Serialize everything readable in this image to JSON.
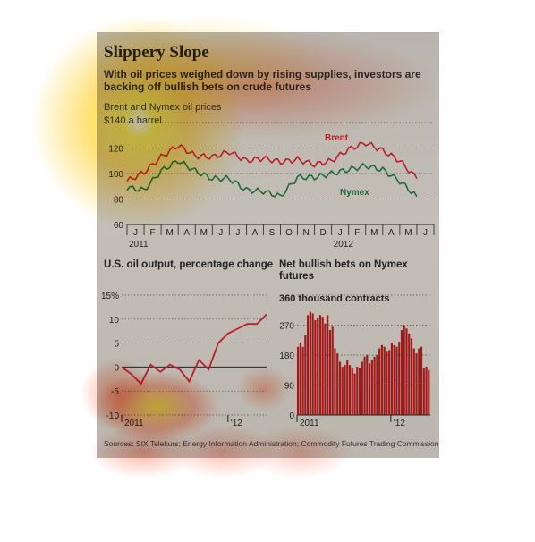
{
  "header": {
    "title": "Slippery Slope",
    "subtitle": "With oil prices weighed down by rising supplies, investors are backing off bullish bets on crude futures"
  },
  "chart_data": [
    {
      "type": "line",
      "title": "Brent and Nymex oil prices",
      "unit_label": "$140 a barrel",
      "ylim": [
        60,
        140
      ],
      "yticks": [
        60,
        80,
        100,
        120,
        140
      ],
      "months": [
        "J",
        "F",
        "M",
        "A",
        "M",
        "J",
        "J",
        "A",
        "S",
        "O",
        "N",
        "D",
        "J",
        "F",
        "M",
        "A",
        "M",
        "J"
      ],
      "year_labels": [
        "2011",
        "2012"
      ],
      "series": [
        {
          "name": "Brent",
          "color": "#b8202a",
          "values": [
            94,
            101,
            113,
            122,
            114,
            113,
            117,
            110,
            112,
            109,
            111,
            107,
            110,
            119,
            124,
            118,
            110,
            96
          ]
        },
        {
          "name": "Nymex",
          "color": "#1e6b3c",
          "values": [
            89,
            87,
            102,
            110,
            102,
            96,
            96,
            87,
            86,
            82,
            97,
            97,
            100,
            103,
            106,
            103,
            94,
            82
          ]
        }
      ]
    },
    {
      "type": "line",
      "title": "U.S. oil output, percentage change",
      "ylim": [
        -10,
        15
      ],
      "yticks": [
        "15%",
        "10",
        "5",
        "0",
        "-5",
        "-10"
      ],
      "x_labels": [
        "2011",
        "'12"
      ],
      "series": [
        {
          "name": "",
          "color": "#b8202a",
          "values": [
            0,
            -1.5,
            -3.5,
            0.5,
            -1,
            0.5,
            -0.5,
            -3,
            1.5,
            -0.5,
            5,
            7,
            8,
            9,
            9,
            11
          ]
        }
      ]
    },
    {
      "type": "bar",
      "title": "Net bullish bets on Nymex futures",
      "unit_label": "360 thousand contracts",
      "ylim": [
        0,
        360
      ],
      "yticks": [
        "270",
        "180",
        "90",
        "0"
      ],
      "x_labels": [
        "2011",
        "'12"
      ],
      "color": "#a01818",
      "values": [
        205,
        215,
        205,
        240,
        300,
        310,
        305,
        285,
        290,
        300,
        295,
        275,
        300,
        255,
        265,
        200,
        185,
        160,
        145,
        150,
        165,
        150,
        140,
        125,
        145,
        140,
        160,
        175,
        180,
        155,
        165,
        175,
        180,
        200,
        210,
        205,
        190,
        195,
        215,
        210,
        205,
        220,
        255,
        270,
        260,
        245,
        230,
        200,
        185,
        200,
        205,
        140,
        145,
        135
      ]
    }
  ],
  "footer": {
    "source": "Sources: SIX Telekurs; Energy Information Administration; Commodity Futures Trading Commission"
  }
}
